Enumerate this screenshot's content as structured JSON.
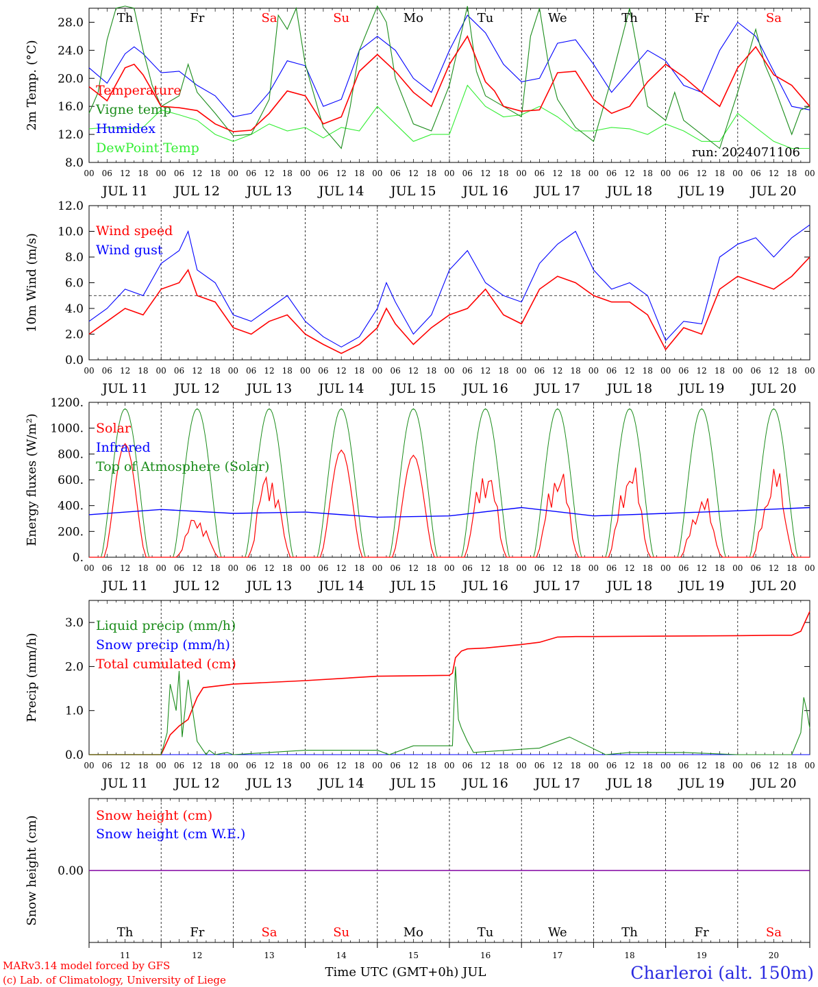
{
  "footer": {
    "model_line": "MARv3.14 model forced by GFS",
    "credit_line": "(c) Lab. of Climatology, University of Liege",
    "x_axis_title": "Time UTC (GMT+0h) JUL",
    "station": "Charleroi (alt. 150m)"
  },
  "colors": {
    "red": "#ff0000",
    "green": "#1a8c1a",
    "blue": "#0000ff",
    "lime": "#33ee33",
    "purple": "#8000a0",
    "sat": "#ff0000"
  },
  "days": [
    {
      "dow": "Th",
      "date": "JUL 11",
      "num": "11",
      "weekend": false
    },
    {
      "dow": "Fr",
      "date": "JUL 12",
      "num": "12",
      "weekend": false
    },
    {
      "dow": "Sa",
      "date": "JUL 13",
      "num": "13",
      "weekend": true
    },
    {
      "dow": "Su",
      "date": "JUL 14",
      "num": "14",
      "weekend": true
    },
    {
      "dow": "Mo",
      "date": "JUL 15",
      "num": "15",
      "weekend": false
    },
    {
      "dow": "Tu",
      "date": "JUL 16",
      "num": "16",
      "weekend": false
    },
    {
      "dow": "We",
      "date": "JUL 17",
      "num": "17",
      "weekend": false
    },
    {
      "dow": "Th",
      "date": "JUL 18",
      "num": "18",
      "weekend": false
    },
    {
      "dow": "Fr",
      "date": "JUL 19",
      "num": "19",
      "weekend": false
    },
    {
      "dow": "Sa",
      "date": "JUL 20",
      "num": "20",
      "weekend": true
    }
  ],
  "hour_labels": [
    "00",
    "06",
    "12",
    "18"
  ],
  "chart_data": [
    {
      "type": "line",
      "id": "temp",
      "ylabel": "2m Temp. (°C)",
      "ylim": [
        8,
        30
      ],
      "yticks": [
        "8.0",
        "12.0",
        "16.0",
        "20.0",
        "24.0",
        "28.0"
      ],
      "annotation": "run: 2024071106",
      "x_unit": "hours since JUL 11 00 UTC",
      "series": [
        {
          "name": "Temperature",
          "color": "red",
          "x": [
            0,
            6,
            12,
            15,
            18,
            24,
            30,
            36,
            42,
            48,
            54,
            60,
            66,
            72,
            78,
            84,
            90,
            96,
            102,
            108,
            114,
            120,
            126,
            132,
            135,
            138,
            144,
            150,
            156,
            162,
            168,
            174,
            180,
            186,
            192,
            198,
            204,
            210,
            216,
            222,
            228,
            234,
            240
          ],
          "y": [
            18.8,
            16.8,
            21.5,
            22.0,
            20.5,
            16.0,
            15.8,
            15.4,
            13.5,
            12.4,
            12.6,
            15.0,
            18.2,
            17.5,
            13.5,
            14.5,
            21.0,
            23.4,
            21.0,
            18.0,
            16.0,
            22.0,
            26.0,
            19.5,
            18.2,
            16.0,
            15.3,
            15.5,
            20.8,
            21.0,
            17.0,
            15.0,
            16.0,
            19.5,
            22.0,
            20.2,
            18.0,
            16.0,
            21.5,
            24.5,
            20.5,
            19.0,
            16.0
          ]
        },
        {
          "name": "Vigne temp",
          "color": "green",
          "x": [
            0,
            3,
            6,
            9,
            12,
            15,
            18,
            21,
            24,
            30,
            33,
            36,
            42,
            48,
            54,
            60,
            63,
            66,
            69,
            72,
            78,
            84,
            87,
            90,
            96,
            99,
            102,
            108,
            114,
            120,
            126,
            129,
            132,
            138,
            144,
            147,
            150,
            153,
            156,
            162,
            168,
            174,
            180,
            186,
            192,
            195,
            198,
            204,
            210,
            216,
            222,
            225,
            228,
            234,
            237,
            240
          ],
          "y": [
            15.0,
            18.0,
            25.5,
            30.0,
            32.0,
            30.0,
            24.0,
            19.0,
            16.0,
            17.5,
            22.0,
            18.0,
            15.0,
            11.8,
            12.0,
            17.0,
            29.0,
            27.0,
            30.0,
            22.0,
            13.0,
            10.0,
            16.0,
            24.0,
            32.0,
            28.0,
            20.0,
            13.5,
            12.5,
            19.0,
            31.0,
            21.0,
            17.5,
            16.0,
            14.5,
            26.0,
            30.0,
            22.0,
            17.0,
            13.0,
            11.0,
            20.0,
            30.0,
            16.0,
            14.0,
            18.0,
            14.0,
            12.0,
            10.0,
            18.0,
            27.0,
            22.0,
            19.0,
            12.0,
            15.5,
            16.0
          ]
        },
        {
          "name": "Humidex",
          "color": "blue",
          "x": [
            0,
            6,
            12,
            15,
            18,
            24,
            30,
            36,
            42,
            48,
            54,
            60,
            66,
            72,
            78,
            84,
            90,
            96,
            102,
            108,
            114,
            120,
            126,
            132,
            138,
            144,
            150,
            156,
            162,
            168,
            174,
            180,
            186,
            192,
            198,
            204,
            210,
            216,
            222,
            228,
            234,
            240
          ],
          "y": [
            21.5,
            19.3,
            23.5,
            24.5,
            23.5,
            20.8,
            21.0,
            19.0,
            17.5,
            14.5,
            15.0,
            18.0,
            22.5,
            21.8,
            16.0,
            17.0,
            24.0,
            26.0,
            24.0,
            20.0,
            18.0,
            24.0,
            29.0,
            26.5,
            22.0,
            19.5,
            20.0,
            25.0,
            25.5,
            22.0,
            18.0,
            21.0,
            24.0,
            22.5,
            19.0,
            18.0,
            24.0,
            28.0,
            26.0,
            21.0,
            16.0,
            15.5
          ]
        },
        {
          "name": "DewPoint Temp",
          "color": "lime",
          "x": [
            0,
            6,
            12,
            18,
            24,
            30,
            36,
            42,
            48,
            54,
            60,
            66,
            72,
            78,
            84,
            90,
            96,
            102,
            108,
            114,
            120,
            126,
            132,
            138,
            144,
            150,
            156,
            162,
            168,
            174,
            180,
            186,
            192,
            198,
            204,
            210,
            216,
            222,
            228,
            234,
            240
          ],
          "y": [
            12.8,
            13.0,
            12.8,
            13.0,
            15.5,
            14.8,
            14.0,
            12.0,
            11.0,
            12.0,
            13.5,
            12.5,
            13.0,
            11.5,
            13.0,
            12.5,
            16.0,
            13.5,
            11.0,
            12.0,
            12.0,
            19.0,
            16.0,
            14.5,
            14.8,
            16.0,
            14.5,
            12.5,
            12.5,
            13.0,
            12.8,
            12.0,
            13.5,
            12.5,
            11.0,
            11.0,
            15.0,
            13.0,
            11.0,
            10.0,
            10.0
          ]
        }
      ]
    },
    {
      "type": "line",
      "id": "wind",
      "ylabel": "10m Wind (m/s)",
      "ylim": [
        0,
        12
      ],
      "yticks": [
        "0.0",
        "2.0",
        "4.0",
        "6.0",
        "8.0",
        "10.0",
        "12.0"
      ],
      "reference_line": 5,
      "x_unit": "hours since JUL 11 00 UTC",
      "series": [
        {
          "name": "Wind speed",
          "color": "red",
          "x": [
            0,
            6,
            12,
            18,
            24,
            30,
            33,
            36,
            42,
            48,
            54,
            60,
            66,
            72,
            78,
            84,
            90,
            96,
            99,
            102,
            108,
            114,
            120,
            126,
            132,
            138,
            144,
            150,
            156,
            162,
            168,
            174,
            180,
            186,
            192,
            198,
            204,
            210,
            216,
            222,
            228,
            234,
            240
          ],
          "y": [
            2.0,
            3.0,
            4.0,
            3.5,
            5.5,
            6.0,
            7.0,
            5.0,
            4.5,
            2.5,
            2.0,
            3.0,
            3.5,
            2.0,
            1.2,
            0.5,
            1.2,
            2.5,
            4.0,
            2.8,
            1.2,
            2.5,
            3.5,
            4.0,
            5.5,
            3.5,
            2.8,
            5.5,
            6.5,
            6.0,
            5.0,
            4.5,
            4.5,
            3.5,
            0.8,
            2.5,
            2.0,
            5.5,
            6.5,
            6.0,
            5.5,
            6.5,
            8.0
          ]
        },
        {
          "name": "Wind gust",
          "color": "blue",
          "x": [
            0,
            6,
            12,
            18,
            24,
            30,
            33,
            36,
            42,
            48,
            54,
            60,
            66,
            72,
            78,
            84,
            90,
            96,
            99,
            102,
            108,
            114,
            120,
            126,
            132,
            138,
            144,
            150,
            156,
            162,
            168,
            174,
            180,
            186,
            192,
            198,
            204,
            210,
            216,
            222,
            228,
            234,
            240
          ],
          "y": [
            3.0,
            4.0,
            5.5,
            5.0,
            7.5,
            8.5,
            10.0,
            7.0,
            6.0,
            3.5,
            3.0,
            4.0,
            5.0,
            3.0,
            1.8,
            1.0,
            1.8,
            4.0,
            6.0,
            4.5,
            2.0,
            3.5,
            7.0,
            8.5,
            6.0,
            5.0,
            4.5,
            7.5,
            9.0,
            10.0,
            7.0,
            5.5,
            6.0,
            5.0,
            1.5,
            3.0,
            2.8,
            8.0,
            9.0,
            9.5,
            8.0,
            9.5,
            10.5
          ]
        }
      ]
    },
    {
      "type": "line",
      "id": "energy",
      "ylabel": "Energy fluxes (W/m²)",
      "ylim": [
        0,
        1200
      ],
      "yticks": [
        "0.",
        "200.",
        "400.",
        "600.",
        "800.",
        "1000.",
        "1200."
      ],
      "x_unit": "hours since JUL 11 00 UTC",
      "series": [
        {
          "name": "Solar",
          "color": "red",
          "peaks": [
            880,
            370,
            800,
            830,
            790,
            840,
            830,
            840,
            540,
            780
          ]
        },
        {
          "name": "Infrared",
          "color": "blue",
          "x": [
            0,
            24,
            48,
            72,
            96,
            120,
            144,
            168,
            192,
            216,
            240
          ],
          "y": [
            330,
            370,
            340,
            350,
            310,
            320,
            385,
            320,
            340,
            360,
            385
          ]
        },
        {
          "name": "Top of Atmosphere (Solar)",
          "color": "green",
          "daily_peak": 1150,
          "sunrise_hour": 4,
          "sunset_hour": 20
        }
      ]
    },
    {
      "type": "line",
      "id": "precip",
      "ylabel": "Precip (mm/h)",
      "ylim": [
        0,
        3.5
      ],
      "yticks": [
        "0.0",
        "1.0",
        "2.0",
        "3.0"
      ],
      "x_unit": "hours since JUL 11 00 UTC",
      "series": [
        {
          "name": "Liquid precip (mm/h)",
          "color": "green",
          "x": [
            0,
            24,
            26,
            27,
            29,
            30,
            31,
            33,
            36,
            38,
            39,
            40,
            42,
            46,
            48,
            72,
            96,
            100,
            108,
            121,
            122,
            123,
            124,
            126,
            128,
            150,
            160,
            172,
            180,
            198,
            216,
            234,
            237,
            238,
            239,
            240
          ],
          "y": [
            0,
            0,
            0.5,
            1.6,
            1.0,
            1.9,
            0.4,
            1.7,
            0.3,
            0.1,
            0.0,
            0.1,
            0,
            0.05,
            0,
            0.1,
            0.1,
            0,
            0.2,
            0.2,
            2.0,
            0.8,
            0.6,
            0.3,
            0.05,
            0.15,
            0.4,
            0,
            0.05,
            0.05,
            0,
            0,
            0.5,
            1.3,
            1.0,
            0.6
          ]
        },
        {
          "name": "Snow precip (mm/h)",
          "color": "blue",
          "x": [
            0,
            240
          ],
          "y": [
            0,
            0
          ]
        },
        {
          "name": "Total cumulated (cm)",
          "color": "red",
          "x": [
            0,
            24,
            27,
            30,
            33,
            36,
            38,
            48,
            72,
            96,
            120,
            121,
            122,
            124,
            126,
            132,
            144,
            150,
            156,
            162,
            168,
            192,
            216,
            228,
            234,
            237,
            240
          ],
          "y": [
            0,
            0,
            0.45,
            0.65,
            0.8,
            1.3,
            1.52,
            1.6,
            1.68,
            1.78,
            1.8,
            1.85,
            2.2,
            2.35,
            2.4,
            2.42,
            2.5,
            2.55,
            2.67,
            2.68,
            2.68,
            2.69,
            2.7,
            2.71,
            2.71,
            2.8,
            3.25
          ]
        }
      ]
    },
    {
      "type": "line",
      "id": "snow",
      "ylabel": "Snow height (cm)",
      "ylim": [
        -1,
        1
      ],
      "yticks": [
        "0.00"
      ],
      "x_unit": "hours since JUL 11 00 UTC",
      "series": [
        {
          "name": "Snow height (cm)",
          "color": "red",
          "x": [
            0,
            240
          ],
          "y": [
            0,
            0
          ]
        },
        {
          "name": "Snow height (cm W.E.)",
          "color": "blue",
          "x": [
            0,
            240
          ],
          "y": [
            0,
            0
          ]
        }
      ]
    }
  ]
}
